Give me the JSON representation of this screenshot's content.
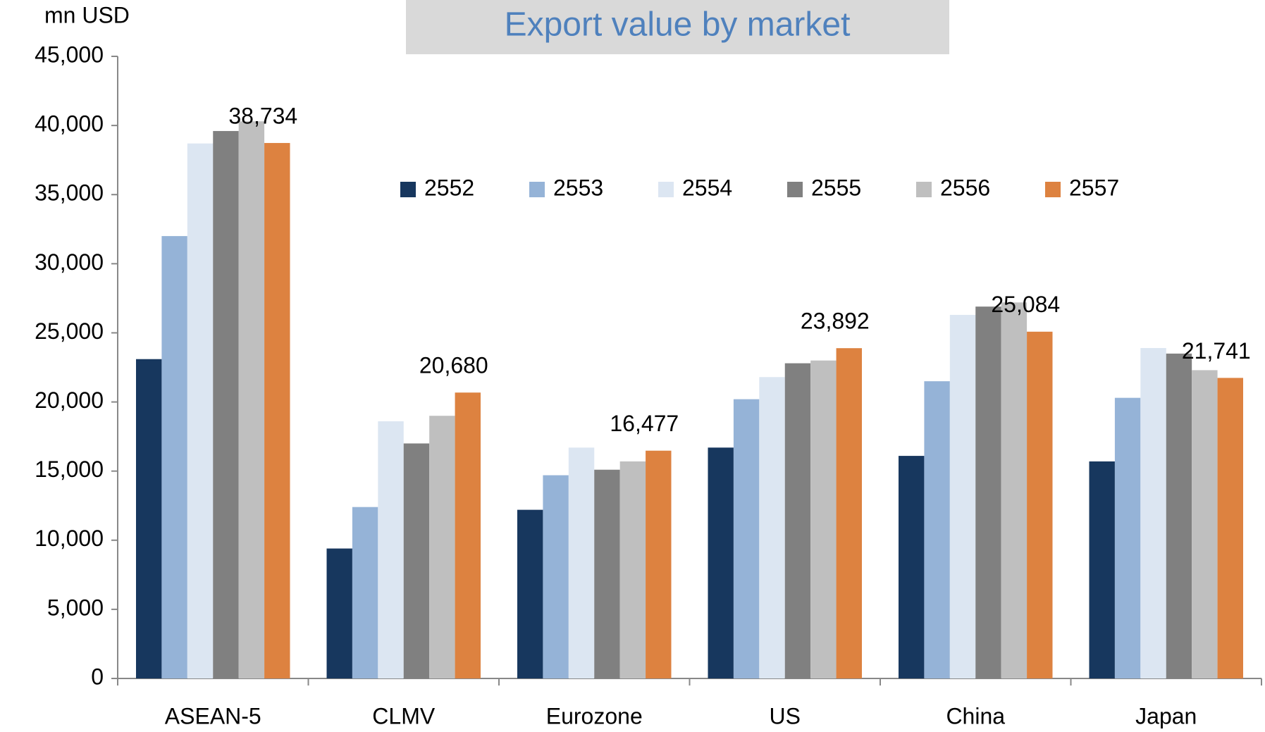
{
  "chart_data": {
    "type": "bar",
    "title": "Export value by market",
    "y_axis_label": "mn USD",
    "categories": [
      "ASEAN-5",
      "CLMV",
      "Eurozone",
      "US",
      "China",
      "Japan"
    ],
    "series": [
      {
        "name": "2552",
        "color": "#17375e",
        "values": [
          23100,
          9400,
          12200,
          16700,
          16100,
          15700
        ]
      },
      {
        "name": "2553",
        "color": "#95b3d7",
        "values": [
          32000,
          12400,
          14700,
          20200,
          21500,
          20300
        ]
      },
      {
        "name": "2554",
        "color": "#dce6f2",
        "values": [
          38700,
          18600,
          16700,
          21800,
          26300,
          23900
        ]
      },
      {
        "name": "2555",
        "color": "#808080",
        "values": [
          39600,
          17000,
          15100,
          22800,
          26900,
          23500
        ]
      },
      {
        "name": "2556",
        "color": "#bfbfbf",
        "values": [
          40300,
          19000,
          15700,
          23000,
          27200,
          22300
        ]
      },
      {
        "name": "2557",
        "color": "#dd8240",
        "values": [
          38734,
          20680,
          16477,
          23892,
          25084,
          21741
        ],
        "value_labels": [
          "38,734",
          "20,680",
          "16,477",
          "23,892",
          "25,084",
          "21,741"
        ]
      }
    ],
    "ylim": [
      0,
      45000
    ],
    "yticks": [
      0,
      {
        "value": 5000,
        "label": "5,000"
      },
      {
        "value": 10000,
        "label": "10,000"
      },
      {
        "value": 15000,
        "label": "15,000"
      },
      {
        "value": 20000,
        "label": "20,000"
      },
      {
        "value": 25000,
        "label": "25,000"
      },
      {
        "value": 30000,
        "label": "30,000"
      },
      {
        "value": 35000,
        "label": "35,000"
      },
      {
        "value": 40000,
        "label": "40,000"
      },
      {
        "value": 45000,
        "label": "45,000"
      }
    ],
    "legend": "top",
    "grid": false
  }
}
